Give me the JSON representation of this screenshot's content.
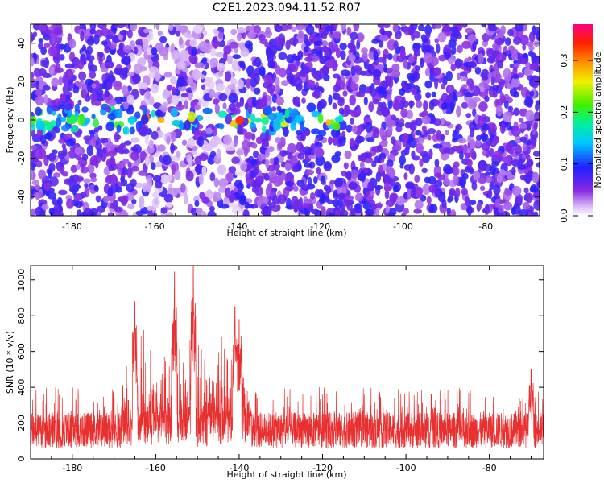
{
  "figure": {
    "title": "C2E1.2023.094.11.52.R07"
  },
  "chart_data": [
    {
      "type": "heatmap",
      "xlabel": "Height of straight line (km)",
      "ylabel": "Frequency (Hz)",
      "xlim": [
        -190,
        -67
      ],
      "ylim": [
        -50,
        50
      ],
      "xticks": [
        -180,
        -160,
        -140,
        -120,
        -100,
        -80
      ],
      "yticks": [
        -40,
        -20,
        0,
        20,
        40
      ],
      "colorbar": {
        "label": "Normalized spectral amplitude",
        "range": [
          0,
          0.37
        ],
        "ticks": [
          0.0,
          0.1,
          0.2,
          0.3
        ],
        "colormap": "rainbow (white-violet-blue-cyan-green-yellow-orange-red-magenta)"
      },
      "features": [
        {
          "description": "band of elevated amplitude near 0 Hz",
          "x_range": [
            -190,
            -115
          ],
          "y_center": 0,
          "peak_amplitude": 0.35
        }
      ],
      "grid": false
    },
    {
      "type": "line",
      "xlabel": "Height of straight line (km)",
      "ylabel": "SNR (10 * v/v)",
      "xlim": [
        -190,
        -67
      ],
      "ylim": [
        0,
        1080
      ],
      "xticks": [
        -180,
        -160,
        -140,
        -120,
        -100,
        -80
      ],
      "yticks": [
        0,
        200,
        400,
        600,
        800,
        1000
      ],
      "color": "#e83030",
      "baseline_band": [
        60,
        260
      ],
      "peaks": [
        {
          "x": -165,
          "y": 880
        },
        {
          "x": -155.5,
          "y": 1045
        },
        {
          "x": -151,
          "y": 1075
        },
        {
          "x": -141,
          "y": 850
        },
        {
          "x": -140,
          "y": 780
        },
        {
          "x": -70,
          "y": 500
        }
      ],
      "grid": false
    }
  ]
}
